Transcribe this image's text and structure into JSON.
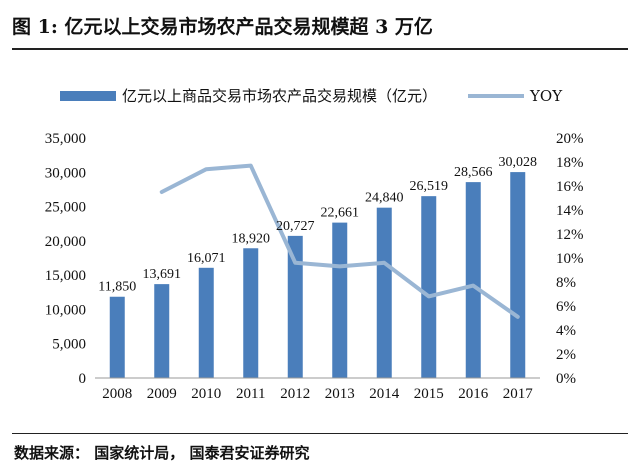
{
  "header": {
    "title": "图 1:  亿元以上交易市场农产品交易规模超 3 万亿"
  },
  "footer": {
    "source": "数据来源： 国家统计局， 国泰君安证券研究"
  },
  "chart_data": {
    "type": "bar",
    "title": "图 1:  亿元以上交易市场农产品交易规模超 3 万亿",
    "categories": [
      "2008",
      "2009",
      "2010",
      "2011",
      "2012",
      "2013",
      "2014",
      "2015",
      "2016",
      "2017"
    ],
    "series": [
      {
        "name": "亿元以上商品交易市场农产品交易规模（亿元）",
        "type": "bar",
        "axis": "left",
        "color": "#4a7ebb",
        "values": [
          11850,
          13691,
          16071,
          18920,
          20727,
          22661,
          24840,
          26519,
          28566,
          30028
        ],
        "labels": [
          "11,850",
          "13,691",
          "16,071",
          "18,920",
          "20,727",
          "22,661",
          "24,840",
          "26,519",
          "28,566",
          "30,028"
        ]
      },
      {
        "name": "YOY",
        "type": "line",
        "axis": "right",
        "color": "#9ab6d4",
        "values": [
          null,
          15.5,
          17.4,
          17.7,
          9.6,
          9.3,
          9.6,
          6.8,
          7.7,
          5.1
        ]
      }
    ],
    "y_left": {
      "min": 0,
      "max": 35000,
      "ticks": [
        0,
        5000,
        10000,
        15000,
        20000,
        25000,
        30000,
        35000
      ],
      "tick_labels": [
        "0",
        "5,000",
        "10,000",
        "15,000",
        "20,000",
        "25,000",
        "30,000",
        "35,000"
      ]
    },
    "y_right": {
      "min": 0,
      "max": 20,
      "ticks": [
        0,
        2,
        4,
        6,
        8,
        10,
        12,
        14,
        16,
        18,
        20
      ],
      "tick_labels": [
        "0%",
        "2%",
        "4%",
        "6%",
        "8%",
        "10%",
        "12%",
        "14%",
        "16%",
        "18%",
        "20%"
      ]
    },
    "legend_position": "top",
    "grid": false
  }
}
